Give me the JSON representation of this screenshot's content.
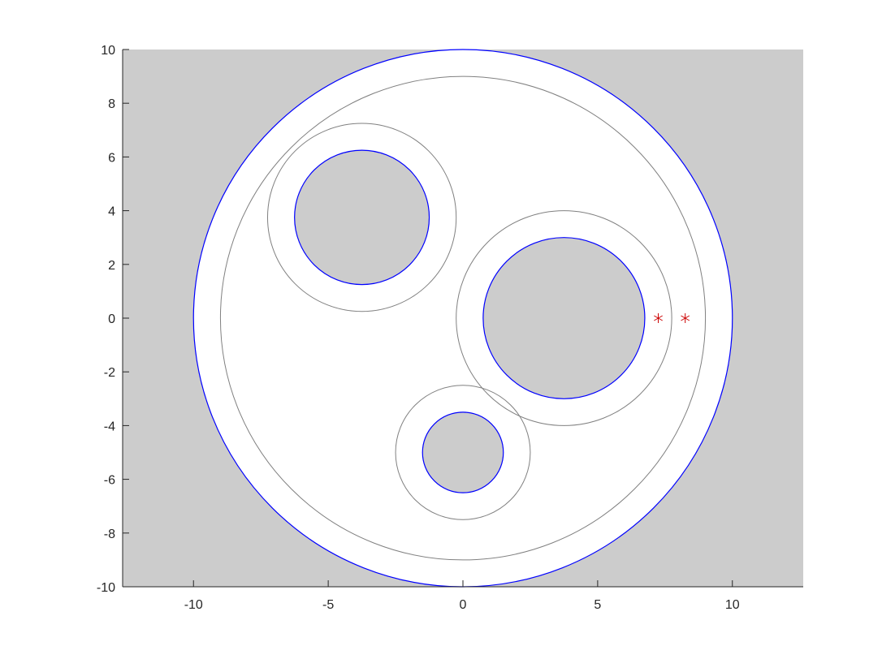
{
  "chart_data": {
    "type": "scatter",
    "title": "",
    "xlabel": "",
    "ylabel": "",
    "xlim": [
      -12.63,
      12.63
    ],
    "ylim": [
      -10,
      10
    ],
    "xticks": [
      -10,
      -5,
      0,
      5,
      10
    ],
    "yticks": [
      -10,
      -8,
      -6,
      -4,
      -2,
      0,
      2,
      4,
      6,
      8,
      10
    ],
    "grid": false,
    "colors": {
      "background": "#cccccc",
      "domain_fill": "#ffffff",
      "boundary": "#0000ff",
      "offset": "#808080",
      "marker": "#cc0000"
    },
    "circles": [
      {
        "name": "outer-boundary",
        "cx": 0,
        "cy": 0,
        "r": 10,
        "kind": "boundary"
      },
      {
        "name": "outer-offset",
        "cx": 0,
        "cy": 0,
        "r": 9,
        "kind": "offset"
      },
      {
        "name": "hole-top-left",
        "cx": -3.75,
        "cy": 3.75,
        "r": 2.5,
        "kind": "boundary"
      },
      {
        "name": "hole-top-left-offset",
        "cx": -3.75,
        "cy": 3.75,
        "r": 3.5,
        "kind": "offset"
      },
      {
        "name": "hole-right",
        "cx": 3.75,
        "cy": 0,
        "r": 3,
        "kind": "boundary"
      },
      {
        "name": "hole-right-offset",
        "cx": 3.75,
        "cy": 0,
        "r": 4,
        "kind": "offset"
      },
      {
        "name": "hole-bottom",
        "cx": 0,
        "cy": -5,
        "r": 1.5,
        "kind": "boundary"
      },
      {
        "name": "hole-bottom-offset",
        "cx": 0,
        "cy": -5,
        "r": 2.5,
        "kind": "offset"
      }
    ],
    "points": [
      {
        "x": 7.25,
        "y": 0
      },
      {
        "x": 8.25,
        "y": 0
      }
    ]
  }
}
